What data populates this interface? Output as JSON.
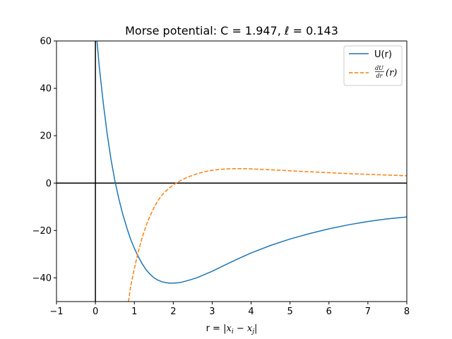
{
  "chart_data": {
    "type": "line",
    "title": "Morse potential: C = 1.947, ℓ = 0.143",
    "xlabel": "r = |x_i − x_j|",
    "xlabel_parts": {
      "prefix": "r = |",
      "x1": "x",
      "sub1": "i",
      "minus": " − ",
      "x2": "x",
      "sub2": "j",
      "suffix": "|"
    },
    "ylabel": "",
    "xlim": [
      -1,
      8
    ],
    "ylim": [
      -50,
      60
    ],
    "xticks": [
      "−1",
      "0",
      "1",
      "2",
      "3",
      "4",
      "5",
      "6",
      "7",
      "8"
    ],
    "yticks": [
      "−40",
      "−20",
      "0",
      "20",
      "40",
      "60"
    ],
    "legend_position": "top-right",
    "reference_lines": {
      "x": 0,
      "y": 0,
      "color": "#000000"
    },
    "series": [
      {
        "name": "U(r)",
        "color": "#1f77b4",
        "style": "solid",
        "x": [
          0.04,
          0.1,
          0.2,
          0.3,
          0.4,
          0.5,
          0.6,
          0.7,
          0.8,
          0.9,
          1.0,
          1.1,
          1.2,
          1.3,
          1.4,
          1.5,
          1.6,
          1.7,
          1.8,
          1.9,
          2.0,
          2.1,
          2.2,
          2.4,
          2.6,
          2.8,
          3.0,
          3.25,
          3.5,
          3.75,
          4.0,
          4.5,
          5.0,
          5.5,
          6.0,
          6.5,
          7.0,
          7.5,
          8.0
        ],
        "y": [
          60.0,
          49.0,
          34.0,
          21.0,
          10.0,
          1.0,
          -6.5,
          -13.0,
          -18.5,
          -23.5,
          -27.5,
          -31.0,
          -34.0,
          -36.5,
          -38.4,
          -39.9,
          -40.9,
          -41.6,
          -42.0,
          -42.2,
          -42.2,
          -42.1,
          -41.9,
          -41.0,
          -40.0,
          -38.6,
          -37.2,
          -35.2,
          -33.2,
          -31.3,
          -29.5,
          -26.3,
          -23.6,
          -21.3,
          -19.3,
          -17.6,
          -16.2,
          -15.1,
          -14.3
        ]
      },
      {
        "name": "dU/dr(r)",
        "legend_math": {
          "num": "dU",
          "den": "dr",
          "suffix": "(r)"
        },
        "color": "#ff7f0e",
        "style": "dashed",
        "x": [
          0.85,
          0.9,
          1.0,
          1.1,
          1.2,
          1.3,
          1.4,
          1.5,
          1.6,
          1.7,
          1.8,
          1.9,
          2.0,
          2.1,
          2.2,
          2.3,
          2.4,
          2.6,
          2.8,
          3.0,
          3.2,
          3.4,
          3.6,
          3.8,
          4.0,
          4.5,
          5.0,
          5.5,
          6.0,
          6.5,
          7.0,
          7.5,
          8.0
        ],
        "y": [
          -50.0,
          -44.0,
          -36.0,
          -29.0,
          -23.0,
          -18.0,
          -14.0,
          -10.5,
          -7.5,
          -5.3,
          -3.5,
          -2.0,
          -0.8,
          0.3,
          1.2,
          2.0,
          2.7,
          3.9,
          4.8,
          5.4,
          5.8,
          6.0,
          6.1,
          6.1,
          6.0,
          5.6,
          5.2,
          4.8,
          4.4,
          4.0,
          3.7,
          3.4,
          3.1
        ]
      }
    ]
  }
}
